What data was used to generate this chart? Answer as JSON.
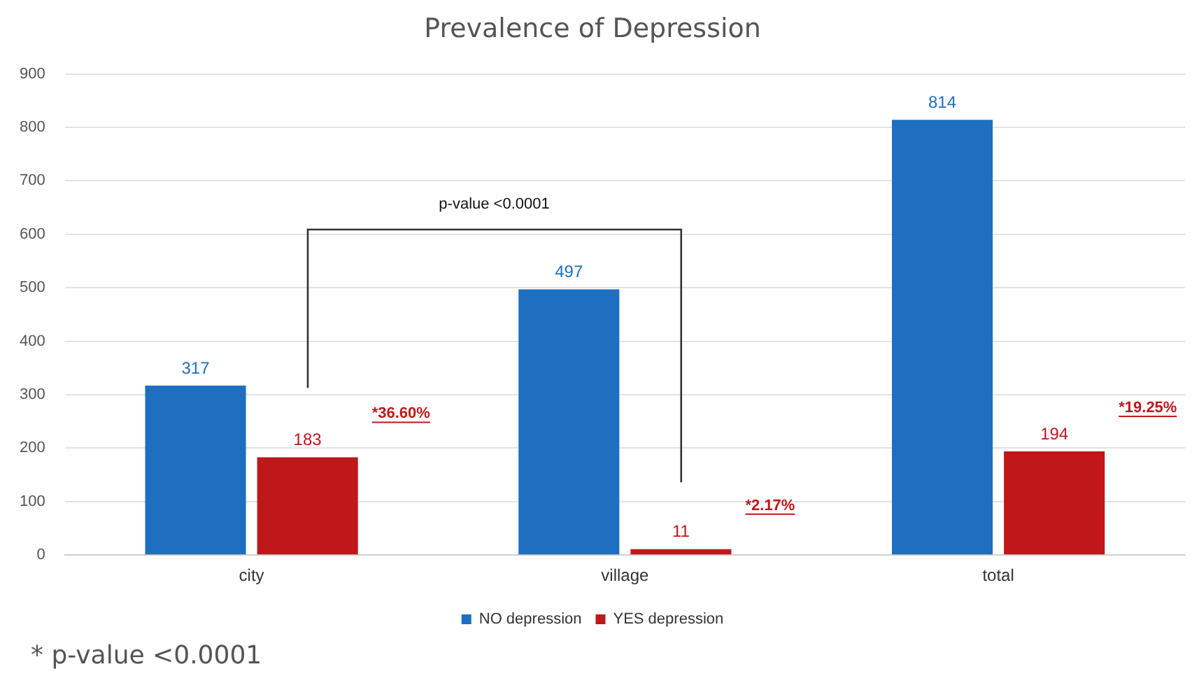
{
  "chart_data": {
    "type": "bar",
    "title": "Prevalence of Depression",
    "categories": [
      "city",
      "village",
      "total"
    ],
    "series": [
      {
        "name": "NO depression",
        "color": "#1f6fc0",
        "values": [
          317,
          497,
          814
        ]
      },
      {
        "name": "YES depression",
        "color": "#c0171b",
        "values": [
          183,
          11,
          194
        ]
      }
    ],
    "ylim": [
      0,
      900
    ],
    "yticks": [
      0,
      100,
      200,
      300,
      400,
      500,
      600,
      700,
      800,
      900
    ],
    "grid": "y",
    "legend": "bottom",
    "data_labels": true,
    "annotations": [
      "p-value <0.0001",
      "* p-value <0.0001",
      "*36.60%",
      "*2.17%",
      "*19.25%"
    ]
  }
}
